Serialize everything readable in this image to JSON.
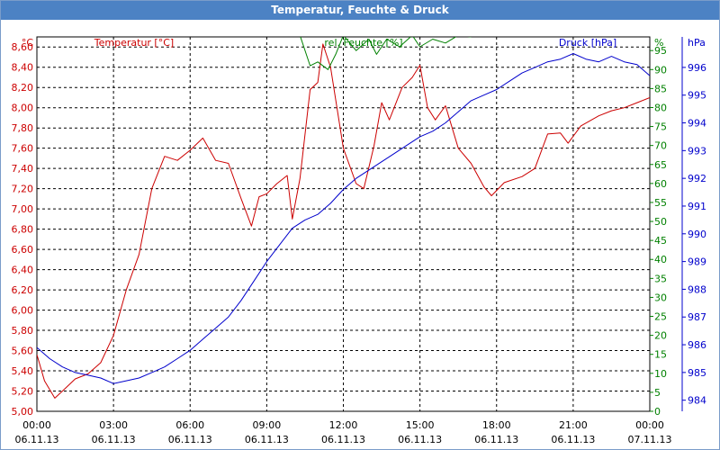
{
  "window": {
    "title": "Temperatur, Feuchte & Druck"
  },
  "chart_data": {
    "type": "line",
    "title": "Temperatur, Feuchte & Druck",
    "grid": true,
    "x_hours": [
      0,
      3,
      6,
      9,
      12,
      15,
      18,
      21,
      24
    ],
    "x_tick_labels": [
      [
        "00:00",
        "06.11.13"
      ],
      [
        "03:00",
        "06.11.13"
      ],
      [
        "06:00",
        "06.11.13"
      ],
      [
        "09:00",
        "06.11.13"
      ],
      [
        "12:00",
        "06.11.13"
      ],
      [
        "15:00",
        "06.11.13"
      ],
      [
        "18:00",
        "06.11.13"
      ],
      [
        "21:00",
        "06.11.13"
      ],
      [
        "00:00",
        "07.11.13"
      ]
    ],
    "axes": {
      "temperature": {
        "label": "Temperatur [°C]",
        "unit": "°C",
        "color": "#cc0000",
        "range": [
          5.0,
          8.7
        ],
        "ticks": [
          "5,00",
          "5,20",
          "5,40",
          "5,60",
          "5,80",
          "6,00",
          "6,20",
          "6,40",
          "6,60",
          "6,80",
          "7,00",
          "7,20",
          "7,40",
          "7,60",
          "7,80",
          "8,00",
          "8,20",
          "8,40",
          "8,60"
        ]
      },
      "humidity": {
        "label": "rel. Feuchte [%]",
        "unit": "%",
        "color": "#008000",
        "range": [
          0,
          98.6
        ],
        "ticks": [
          "0",
          "5",
          "10",
          "15",
          "20",
          "25",
          "30",
          "35",
          "40",
          "45",
          "50",
          "55",
          "60",
          "65",
          "70",
          "75",
          "80",
          "85",
          "90",
          "95"
        ]
      },
      "pressure": {
        "label": "Druck [hPa]",
        "unit": "hPa",
        "color": "#0000cc",
        "range": [
          983.6,
          997.1
        ],
        "ticks": [
          "984",
          "985",
          "986",
          "987",
          "988",
          "989",
          "990",
          "991",
          "992",
          "993",
          "994",
          "995",
          "996"
        ]
      }
    },
    "series": [
      {
        "name": "Temperatur [°C]",
        "axis": "temperature",
        "color": "#cc0000",
        "points": [
          [
            0,
            5.56
          ],
          [
            0.3,
            5.3
          ],
          [
            0.7,
            5.13
          ],
          [
            1,
            5.2
          ],
          [
            1.5,
            5.32
          ],
          [
            2,
            5.37
          ],
          [
            2.5,
            5.48
          ],
          [
            3,
            5.75
          ],
          [
            3.5,
            6.2
          ],
          [
            4,
            6.55
          ],
          [
            4.5,
            7.2
          ],
          [
            5,
            7.52
          ],
          [
            5.5,
            7.48
          ],
          [
            6,
            7.58
          ],
          [
            6.5,
            7.7
          ],
          [
            7,
            7.48
          ],
          [
            7.5,
            7.45
          ],
          [
            8,
            7.1
          ],
          [
            8.4,
            6.83
          ],
          [
            8.7,
            7.12
          ],
          [
            9,
            7.15
          ],
          [
            9.4,
            7.25
          ],
          [
            9.8,
            7.33
          ],
          [
            10,
            6.9
          ],
          [
            10.3,
            7.3
          ],
          [
            10.7,
            8.18
          ],
          [
            11,
            8.25
          ],
          [
            11.2,
            8.63
          ],
          [
            11.5,
            8.4
          ],
          [
            12,
            7.6
          ],
          [
            12.5,
            7.25
          ],
          [
            12.8,
            7.2
          ],
          [
            13.2,
            7.62
          ],
          [
            13.5,
            8.05
          ],
          [
            13.8,
            7.88
          ],
          [
            14.3,
            8.2
          ],
          [
            14.7,
            8.3
          ],
          [
            15,
            8.42
          ],
          [
            15.3,
            8.0
          ],
          [
            15.6,
            7.88
          ],
          [
            16,
            8.02
          ],
          [
            16.5,
            7.6
          ],
          [
            17,
            7.45
          ],
          [
            17.5,
            7.22
          ],
          [
            17.8,
            7.13
          ],
          [
            18.3,
            7.26
          ],
          [
            19,
            7.32
          ],
          [
            19.5,
            7.4
          ],
          [
            20,
            7.74
          ],
          [
            20.5,
            7.75
          ],
          [
            20.8,
            7.65
          ],
          [
            21.3,
            7.82
          ],
          [
            22,
            7.92
          ],
          [
            22.5,
            7.97
          ],
          [
            23,
            8.0
          ],
          [
            23.5,
            8.05
          ],
          [
            24,
            8.1
          ]
        ]
      },
      {
        "name": "rel. Feuchte [%]",
        "axis": "humidity",
        "color": "#008000",
        "points": [
          [
            10.3,
            99
          ],
          [
            10.7,
            91
          ],
          [
            11,
            92
          ],
          [
            11.4,
            90
          ],
          [
            11.7,
            94
          ],
          [
            12,
            99
          ],
          [
            12.5,
            95
          ],
          [
            13,
            98
          ],
          [
            13.3,
            94
          ],
          [
            13.7,
            98
          ],
          [
            14.2,
            96
          ],
          [
            14.7,
            99
          ],
          [
            15,
            96
          ],
          [
            15.5,
            98
          ],
          [
            16,
            97
          ],
          [
            16.5,
            99
          ],
          [
            17,
            98.6
          ]
        ]
      },
      {
        "name": "Druck [hPa]",
        "axis": "pressure",
        "color": "#0000cc",
        "points": [
          [
            0,
            985.9
          ],
          [
            0.5,
            985.5
          ],
          [
            1,
            985.2
          ],
          [
            1.5,
            985.0
          ],
          [
            2,
            984.9
          ],
          [
            2.5,
            984.8
          ],
          [
            3,
            984.6
          ],
          [
            3.5,
            984.7
          ],
          [
            4,
            984.8
          ],
          [
            4.5,
            985.0
          ],
          [
            5,
            985.2
          ],
          [
            5.5,
            985.5
          ],
          [
            6,
            985.8
          ],
          [
            6.5,
            986.2
          ],
          [
            7,
            986.6
          ],
          [
            7.5,
            987.0
          ],
          [
            8,
            987.6
          ],
          [
            8.5,
            988.3
          ],
          [
            9,
            989.0
          ],
          [
            9.5,
            989.6
          ],
          [
            10,
            990.2
          ],
          [
            10.5,
            990.5
          ],
          [
            11,
            990.7
          ],
          [
            11.5,
            991.1
          ],
          [
            12,
            991.6
          ],
          [
            12.5,
            992.0
          ],
          [
            13,
            992.3
          ],
          [
            13.5,
            992.6
          ],
          [
            14,
            992.9
          ],
          [
            14.5,
            993.2
          ],
          [
            15,
            993.5
          ],
          [
            15.5,
            993.7
          ],
          [
            16,
            994.0
          ],
          [
            16.5,
            994.4
          ],
          [
            17,
            994.8
          ],
          [
            17.5,
            995.0
          ],
          [
            18,
            995.2
          ],
          [
            18.5,
            995.5
          ],
          [
            19,
            995.8
          ],
          [
            19.5,
            996.0
          ],
          [
            20,
            996.2
          ],
          [
            20.5,
            996.3
          ],
          [
            21,
            996.5
          ],
          [
            21.5,
            996.3
          ],
          [
            22,
            996.2
          ],
          [
            22.5,
            996.4
          ],
          [
            23,
            996.2
          ],
          [
            23.5,
            996.1
          ],
          [
            24,
            995.7
          ]
        ]
      }
    ]
  }
}
